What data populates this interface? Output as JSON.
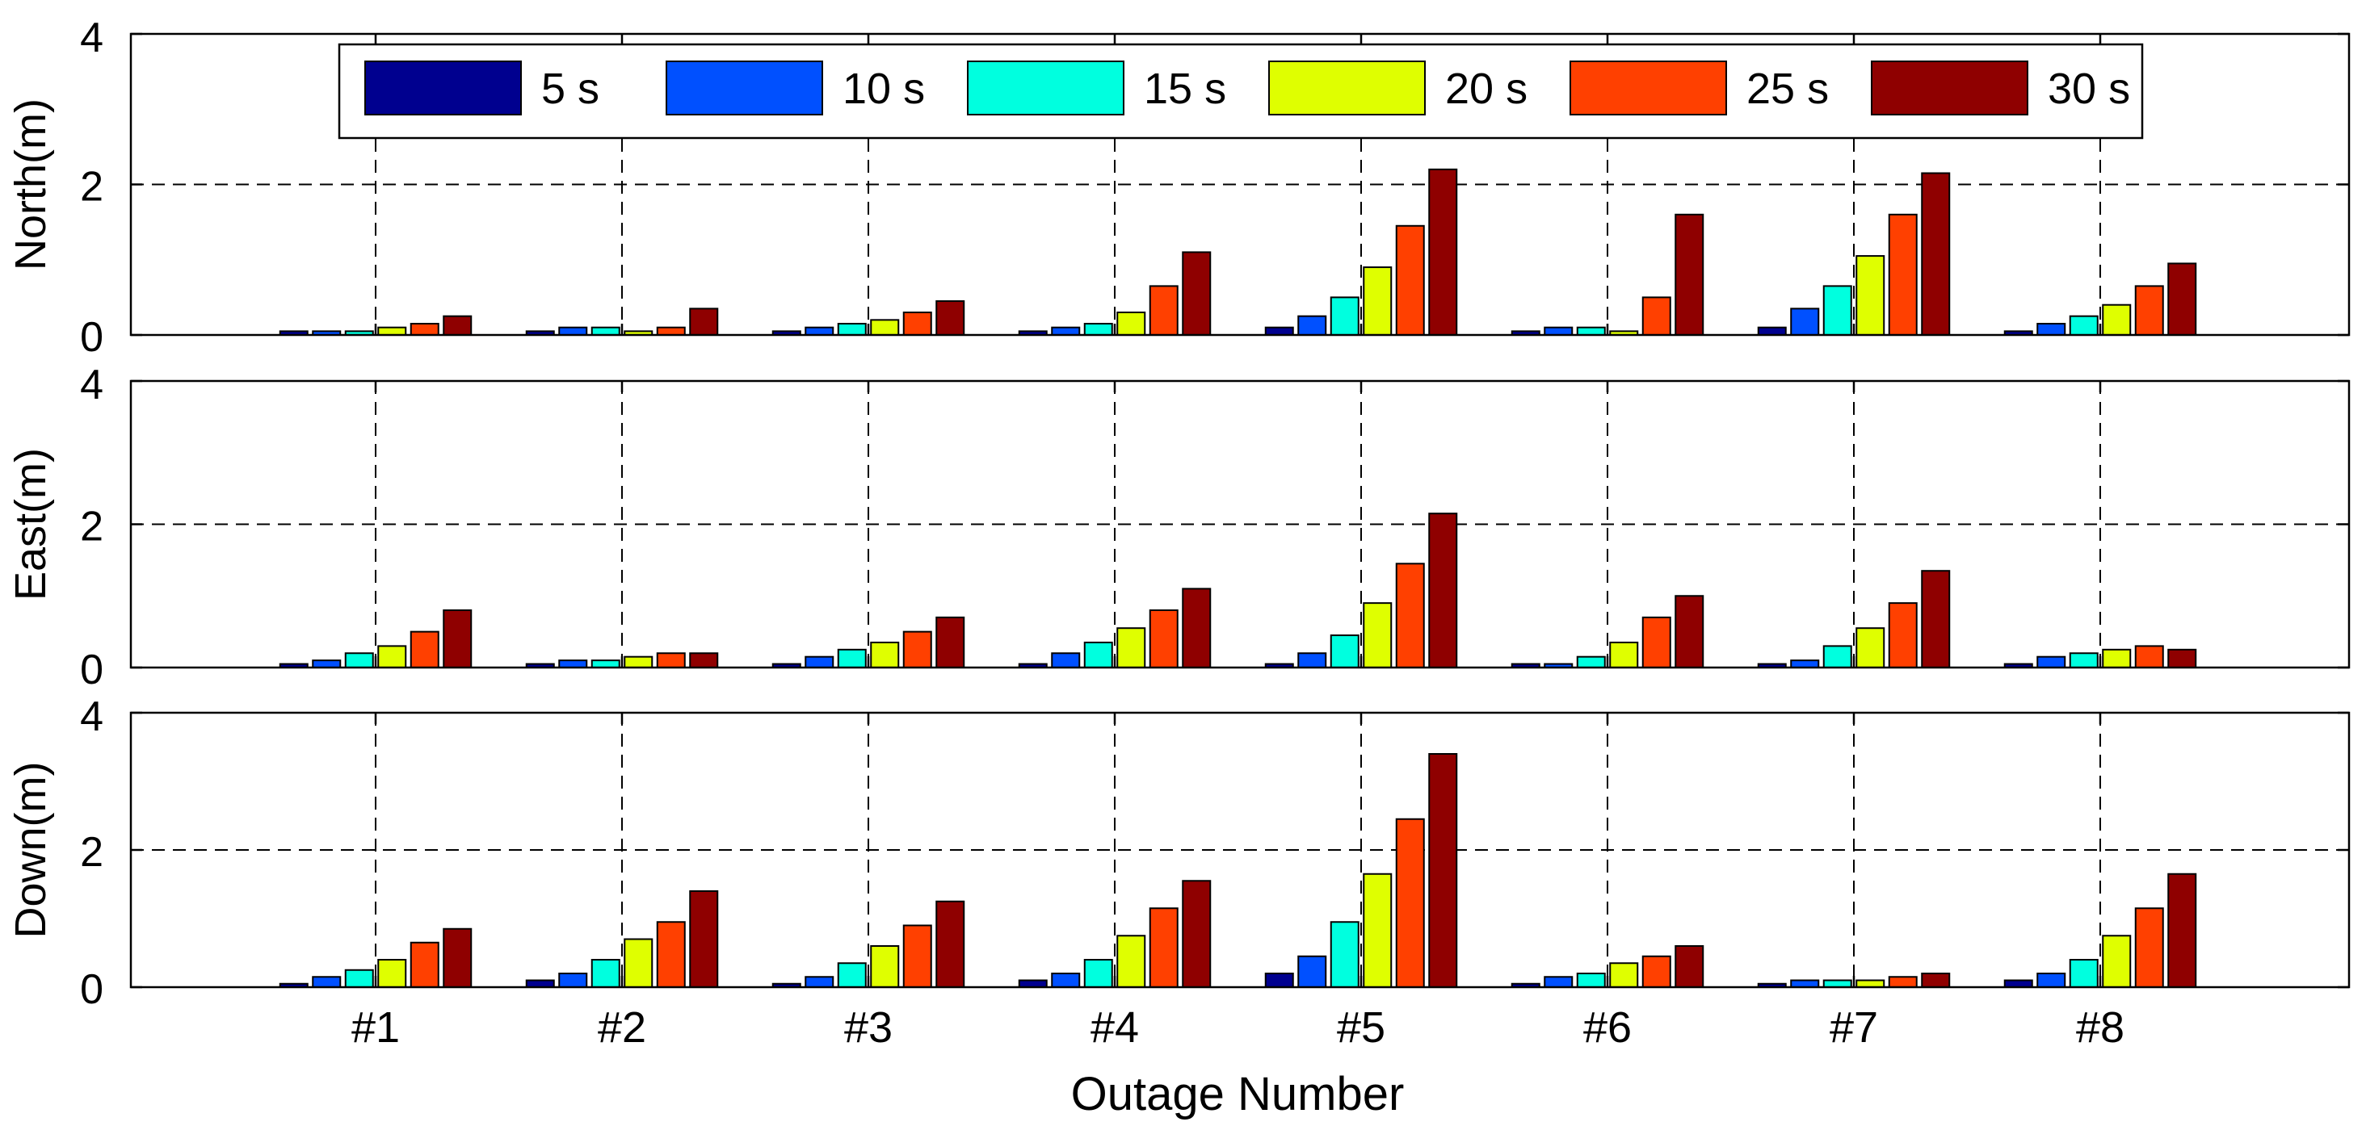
{
  "chart_data": {
    "type": "bar",
    "xlabel": "Outage Number",
    "categories": [
      "#1",
      "#2",
      "#3",
      "#4",
      "#5",
      "#6",
      "#7",
      "#8"
    ],
    "ylim": [
      0,
      4
    ],
    "yticks": [
      "0",
      "2",
      "4"
    ],
    "grid": "dashed",
    "legend": {
      "placement": "top",
      "entries": [
        {
          "label": "5 s",
          "color": "#00008f"
        },
        {
          "label": "10 s",
          "color": "#0050ff"
        },
        {
          "label": "15 s",
          "color": "#00ffdf"
        },
        {
          "label": "20 s",
          "color": "#dfff00"
        },
        {
          "label": "25 s",
          "color": "#ff4000"
        },
        {
          "label": "30 s",
          "color": "#8f0000"
        }
      ]
    },
    "panels": [
      {
        "ylabel": "North(m)",
        "series": [
          {
            "name": "5 s",
            "values": [
              0.05,
              0.05,
              0.05,
              0.05,
              0.1,
              0.05,
              0.1,
              0.05
            ]
          },
          {
            "name": "10 s",
            "values": [
              0.05,
              0.1,
              0.1,
              0.1,
              0.25,
              0.1,
              0.35,
              0.15
            ]
          },
          {
            "name": "15 s",
            "values": [
              0.05,
              0.1,
              0.15,
              0.15,
              0.5,
              0.1,
              0.65,
              0.25
            ]
          },
          {
            "name": "20 s",
            "values": [
              0.1,
              0.05,
              0.2,
              0.3,
              0.9,
              0.05,
              1.05,
              0.4
            ]
          },
          {
            "name": "25 s",
            "values": [
              0.15,
              0.1,
              0.3,
              0.65,
              1.45,
              0.5,
              1.6,
              0.65
            ]
          },
          {
            "name": "30 s",
            "values": [
              0.25,
              0.35,
              0.45,
              1.1,
              2.2,
              1.6,
              2.15,
              0.95
            ]
          }
        ]
      },
      {
        "ylabel": "East(m)",
        "series": [
          {
            "name": "5 s",
            "values": [
              0.05,
              0.05,
              0.05,
              0.05,
              0.05,
              0.05,
              0.05,
              0.05
            ]
          },
          {
            "name": "10 s",
            "values": [
              0.1,
              0.1,
              0.15,
              0.2,
              0.2,
              0.05,
              0.1,
              0.15
            ]
          },
          {
            "name": "15 s",
            "values": [
              0.2,
              0.1,
              0.25,
              0.35,
              0.45,
              0.15,
              0.3,
              0.2
            ]
          },
          {
            "name": "20 s",
            "values": [
              0.3,
              0.15,
              0.35,
              0.55,
              0.9,
              0.35,
              0.55,
              0.25
            ]
          },
          {
            "name": "25 s",
            "values": [
              0.5,
              0.2,
              0.5,
              0.8,
              1.45,
              0.7,
              0.9,
              0.3
            ]
          },
          {
            "name": "30 s",
            "values": [
              0.8,
              0.2,
              0.7,
              1.1,
              2.15,
              1.0,
              1.35,
              0.25
            ]
          }
        ]
      },
      {
        "ylabel": "Down(m)",
        "series": [
          {
            "name": "5 s",
            "values": [
              0.05,
              0.1,
              0.05,
              0.1,
              0.2,
              0.05,
              0.05,
              0.1
            ]
          },
          {
            "name": "10 s",
            "values": [
              0.15,
              0.2,
              0.15,
              0.2,
              0.45,
              0.15,
              0.1,
              0.2
            ]
          },
          {
            "name": "15 s",
            "values": [
              0.25,
              0.4,
              0.35,
              0.4,
              0.95,
              0.2,
              0.1,
              0.4
            ]
          },
          {
            "name": "20 s",
            "values": [
              0.4,
              0.7,
              0.6,
              0.75,
              1.65,
              0.35,
              0.1,
              0.75
            ]
          },
          {
            "name": "25 s",
            "values": [
              0.65,
              0.95,
              0.9,
              1.15,
              2.45,
              0.45,
              0.15,
              1.15
            ]
          },
          {
            "name": "30 s",
            "values": [
              0.85,
              1.4,
              1.25,
              1.55,
              3.4,
              0.6,
              0.2,
              1.65
            ]
          }
        ]
      }
    ]
  }
}
